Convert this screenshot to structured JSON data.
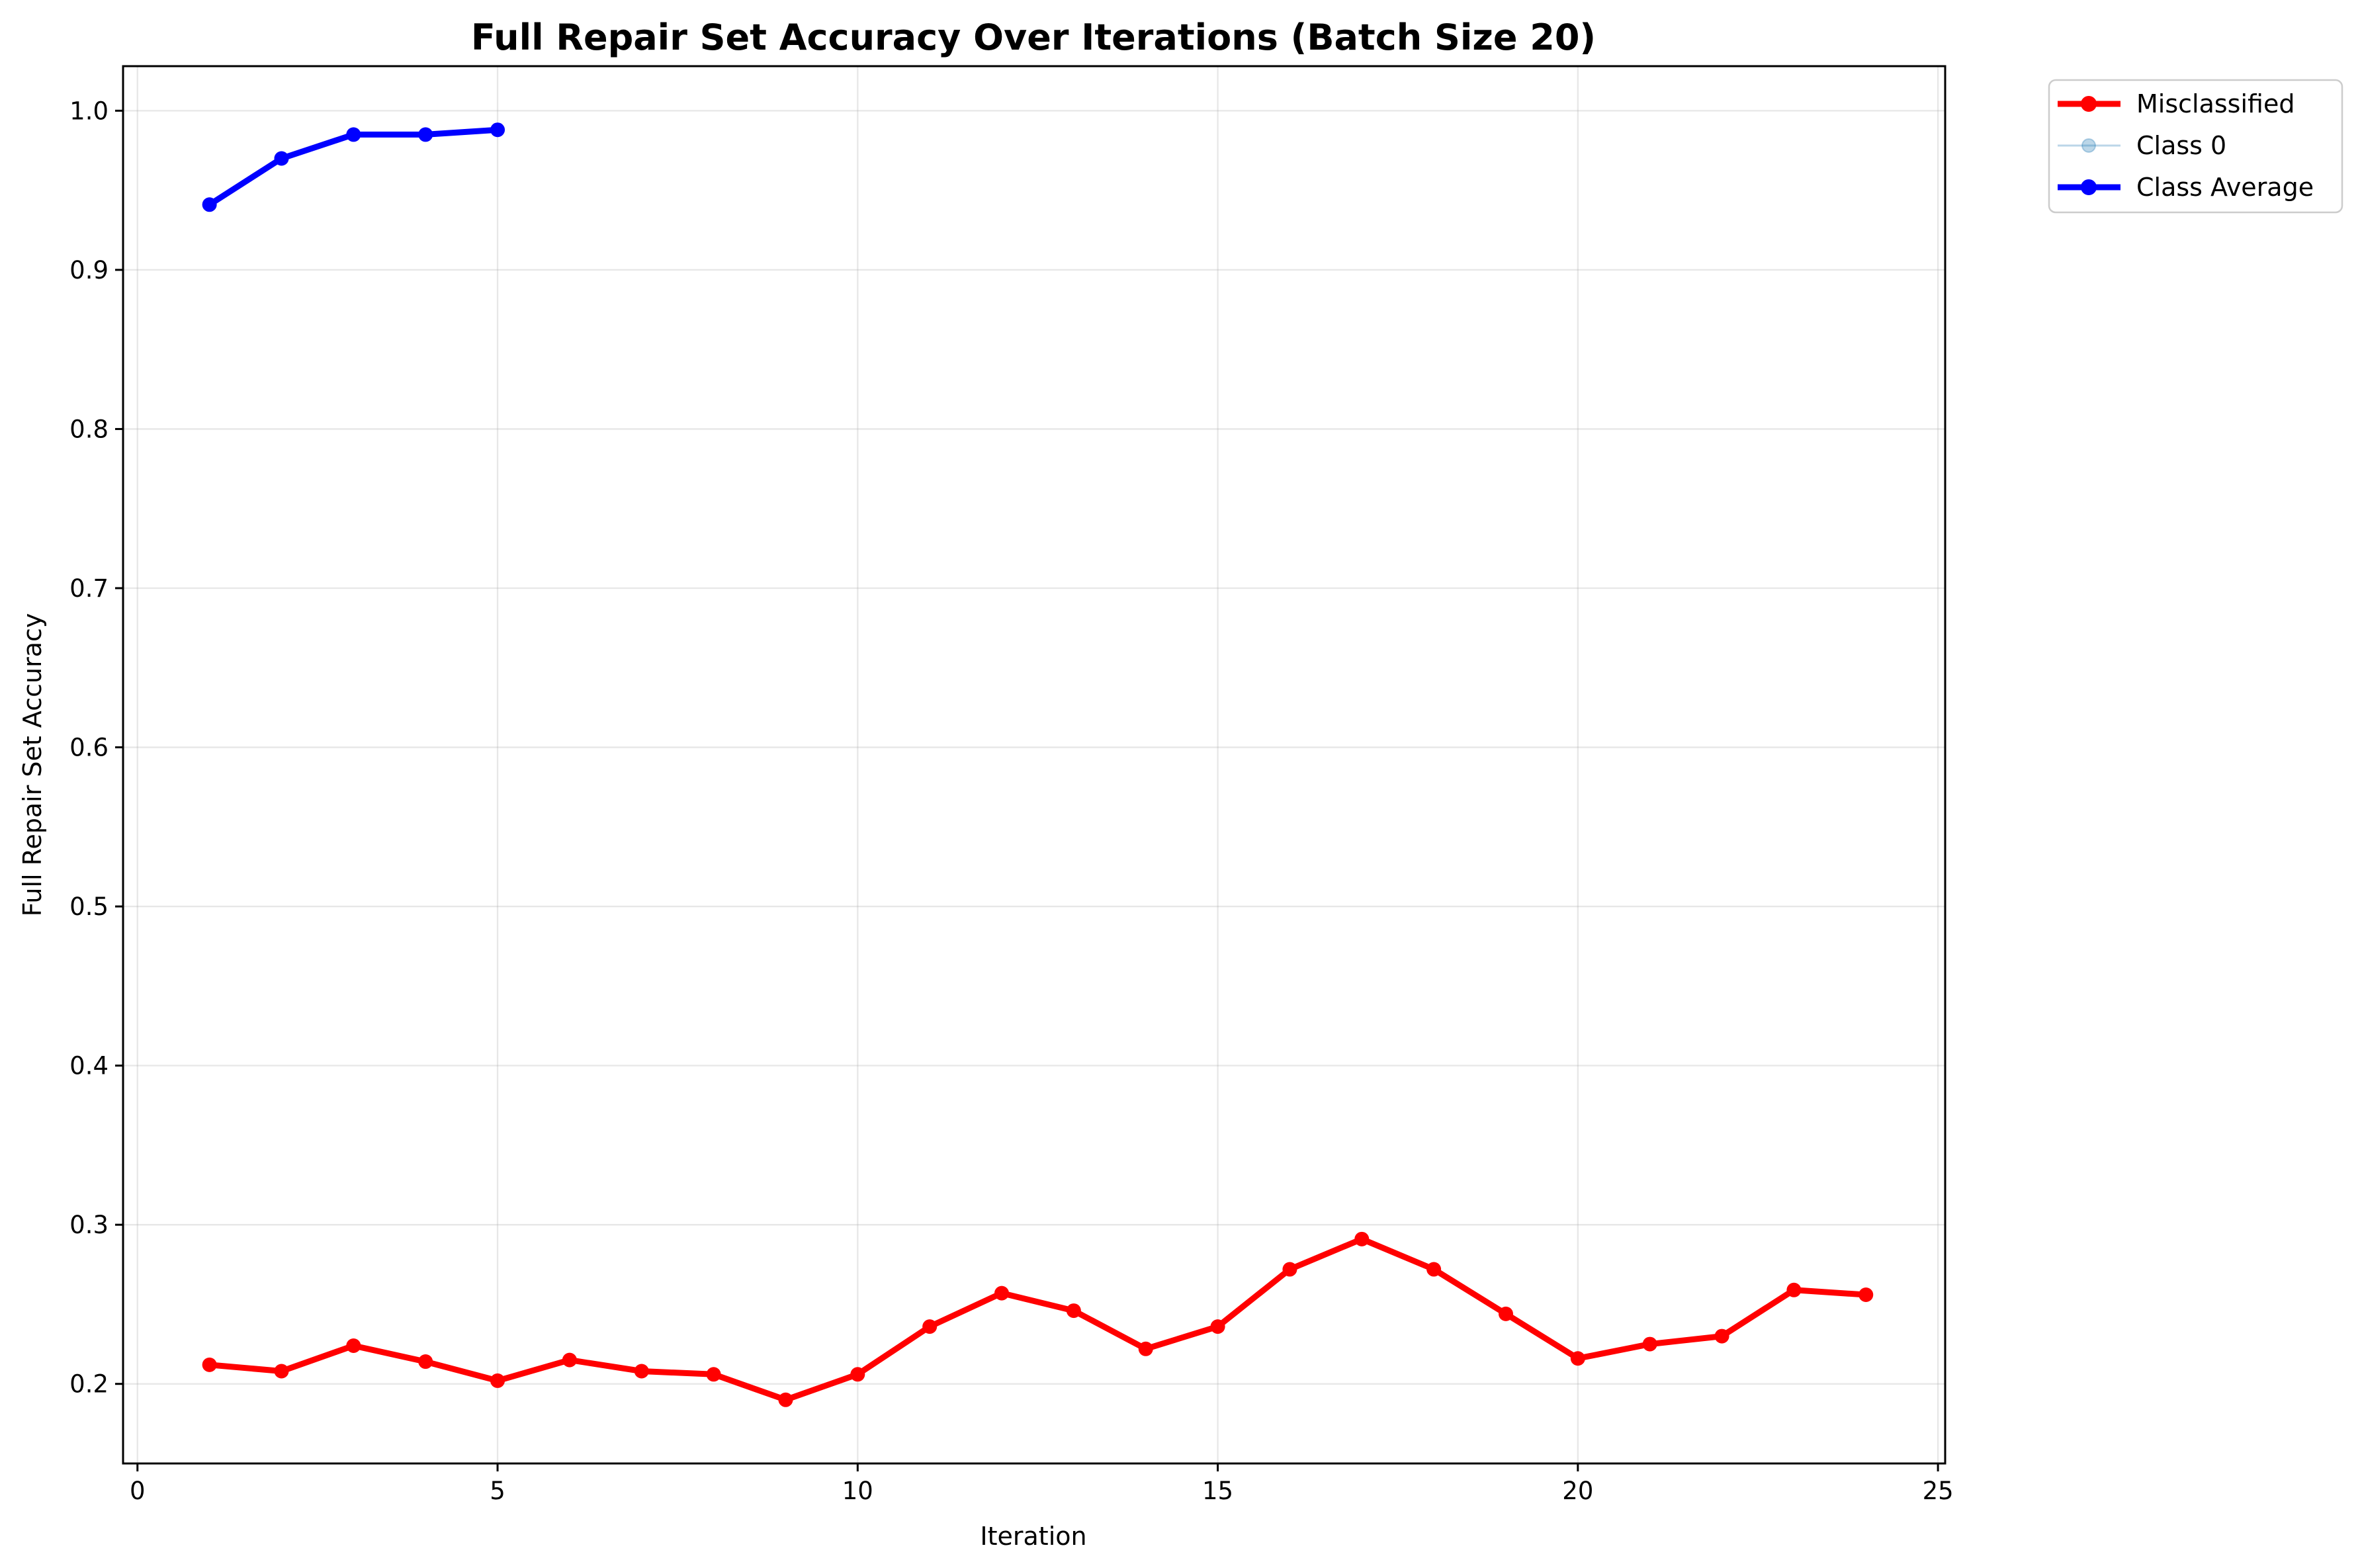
{
  "chart_data": {
    "type": "line",
    "title": "Full Repair Set Accuracy Over Iterations (Batch Size 20)",
    "xlabel": "Iteration",
    "ylabel": "Full Repair Set Accuracy",
    "xlim": [
      -0.2,
      25.1
    ],
    "ylim": [
      0.15,
      1.028
    ],
    "xticks": [
      0,
      5,
      10,
      15,
      20,
      25
    ],
    "yticks": [
      0.2,
      0.3,
      0.4,
      0.5,
      0.6,
      0.7,
      0.8,
      0.9,
      1.0
    ],
    "grid": true,
    "legend_position": "outside-top-right",
    "series": [
      {
        "name": "Misclassified",
        "color": "#ff0000",
        "opacity": 1,
        "line_width": "thick",
        "x": [
          1,
          2,
          3,
          4,
          5,
          6,
          7,
          8,
          9,
          10,
          11,
          12,
          13,
          14,
          15,
          16,
          17,
          18,
          19,
          20,
          21,
          22,
          23,
          24
        ],
        "values": [
          0.212,
          0.208,
          0.224,
          0.214,
          0.202,
          0.215,
          0.208,
          0.206,
          0.19,
          0.206,
          0.236,
          0.257,
          0.246,
          0.222,
          0.236,
          0.272,
          0.291,
          0.272,
          0.244,
          0.216,
          0.225,
          0.23,
          0.259,
          0.256
        ]
      },
      {
        "name": "Class 0",
        "color": "#1f77b4",
        "opacity": 0.3,
        "line_width": "thin",
        "x": [],
        "values": []
      },
      {
        "name": "Class Average",
        "color": "#0000ff",
        "opacity": 1,
        "line_width": "thick",
        "x": [
          1,
          2,
          3,
          4,
          5
        ],
        "values": [
          0.941,
          0.97,
          0.985,
          0.985,
          0.988
        ]
      }
    ]
  }
}
